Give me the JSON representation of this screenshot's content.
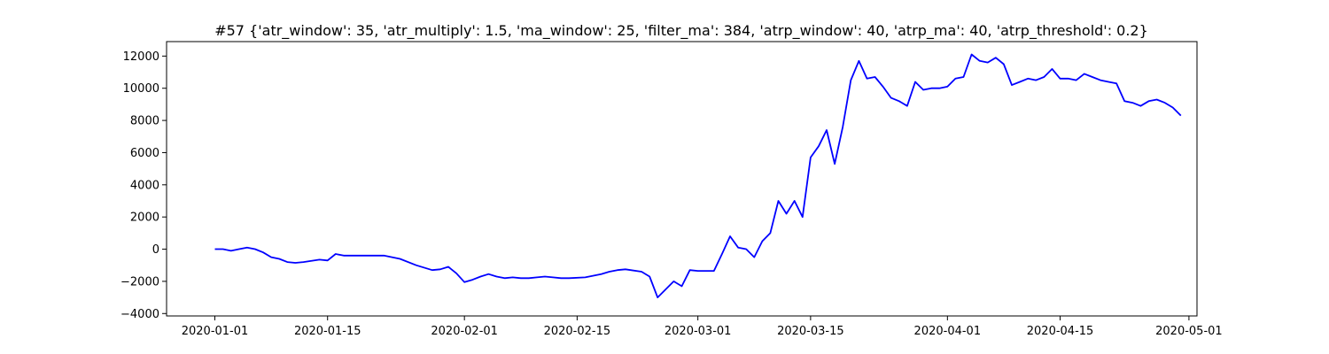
{
  "chart_data": {
    "type": "line",
    "title": "#57 {'atr_window': 35, 'atr_multiply': 1.5, 'ma_window': 25, 'filter_ma': 384, 'atrp_window': 40, 'atrp_ma': 40, 'atrp_threshold': 0.2}",
    "xlabel": "",
    "ylabel": "",
    "x_axis_type": "date",
    "xlim": [
      "2019-12-26",
      "2020-05-02"
    ],
    "ylim": [
      -4150,
      12900
    ],
    "x_ticks": [
      "2020-01-01",
      "2020-01-15",
      "2020-02-01",
      "2020-02-15",
      "2020-03-01",
      "2020-03-15",
      "2020-04-01",
      "2020-04-15",
      "2020-05-01"
    ],
    "y_ticks": [
      -4000,
      -2000,
      0,
      2000,
      4000,
      6000,
      8000,
      10000,
      12000
    ],
    "grid": false,
    "line_color": "#0000ff",
    "series": [
      {
        "x": [
          "2020-01-01",
          "2020-01-02",
          "2020-01-03",
          "2020-01-04",
          "2020-01-05",
          "2020-01-06",
          "2020-01-07",
          "2020-01-08",
          "2020-01-09",
          "2020-01-10",
          "2020-01-11",
          "2020-01-12",
          "2020-01-14",
          "2020-01-15",
          "2020-01-16",
          "2020-01-17",
          "2020-01-18",
          "2020-01-20",
          "2020-01-22",
          "2020-01-23",
          "2020-01-24",
          "2020-01-26",
          "2020-01-28",
          "2020-01-29",
          "2020-01-30",
          "2020-01-31",
          "2020-02-01",
          "2020-02-02",
          "2020-02-03",
          "2020-02-04",
          "2020-02-05",
          "2020-02-06",
          "2020-02-07",
          "2020-02-08",
          "2020-02-09",
          "2020-02-10",
          "2020-02-11",
          "2020-02-12",
          "2020-02-13",
          "2020-02-14",
          "2020-02-16",
          "2020-02-18",
          "2020-02-19",
          "2020-02-20",
          "2020-02-21",
          "2020-02-23",
          "2020-02-24",
          "2020-02-25",
          "2020-02-26",
          "2020-02-27",
          "2020-02-28",
          "2020-02-29",
          "2020-03-01",
          "2020-03-02",
          "2020-03-03",
          "2020-03-04",
          "2020-03-05",
          "2020-03-06",
          "2020-03-07",
          "2020-03-08",
          "2020-03-09",
          "2020-03-10",
          "2020-03-11",
          "2020-03-12",
          "2020-03-13",
          "2020-03-14",
          "2020-03-15",
          "2020-03-16",
          "2020-03-17",
          "2020-03-18",
          "2020-03-19",
          "2020-03-20",
          "2020-03-21",
          "2020-03-22",
          "2020-03-23",
          "2020-03-24",
          "2020-03-25",
          "2020-03-26",
          "2020-03-27",
          "2020-03-28",
          "2020-03-29",
          "2020-03-30",
          "2020-03-31",
          "2020-04-01",
          "2020-04-02",
          "2020-04-03",
          "2020-04-04",
          "2020-04-05",
          "2020-04-06",
          "2020-04-07",
          "2020-04-08",
          "2020-04-09",
          "2020-04-10",
          "2020-04-11",
          "2020-04-12",
          "2020-04-13",
          "2020-04-14",
          "2020-04-15",
          "2020-04-16",
          "2020-04-17",
          "2020-04-18",
          "2020-04-19",
          "2020-04-20",
          "2020-04-21",
          "2020-04-22",
          "2020-04-23",
          "2020-04-24",
          "2020-04-25",
          "2020-04-26",
          "2020-04-27",
          "2020-04-28",
          "2020-04-29",
          "2020-04-30"
        ],
        "y": [
          0,
          0,
          -100,
          0,
          100,
          0,
          -200,
          -500,
          -600,
          -800,
          -850,
          -800,
          -650,
          -700,
          -300,
          -400,
          -400,
          -400,
          -400,
          -500,
          -600,
          -1000,
          -1300,
          -1250,
          -1100,
          -1500,
          -2050,
          -1900,
          -1700,
          -1550,
          -1700,
          -1800,
          -1750,
          -1800,
          -1800,
          -1750,
          -1700,
          -1750,
          -1800,
          -1800,
          -1750,
          -1550,
          -1400,
          -1300,
          -1250,
          -1400,
          -1700,
          -3000,
          -2500,
          -2000,
          -2300,
          -1300,
          -1350,
          -1350,
          -1350,
          -300,
          800,
          100,
          0,
          -500,
          500,
          1000,
          3000,
          2200,
          3000,
          2000,
          5700,
          6400,
          7400,
          5300,
          7600,
          10500,
          11700,
          10600,
          10700,
          10100,
          9400,
          9200,
          8900,
          10400,
          9900,
          10000,
          10000,
          10100,
          10600,
          10700,
          12100,
          11700,
          11600,
          11900,
          11500,
          10200,
          10400,
          10600,
          10500,
          10700,
          11200,
          10600,
          10600,
          10500,
          10900,
          10700,
          10500,
          10400,
          10300,
          9200,
          9100,
          8900,
          9200,
          9300,
          9100,
          8800,
          8300
        ]
      }
    ]
  }
}
